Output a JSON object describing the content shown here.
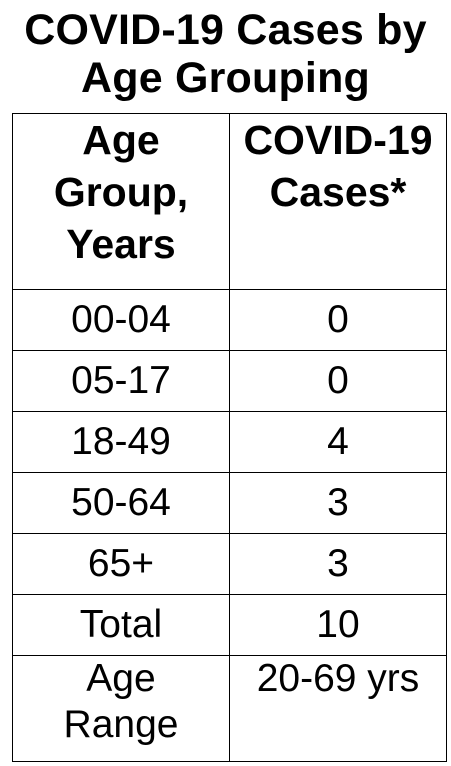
{
  "title": {
    "line1": "COVID-19 Cases by",
    "line2": "Age Grouping"
  },
  "table": {
    "headers": {
      "age_group": [
        "Age",
        "Group,",
        "Years"
      ],
      "cases": [
        "COVID-19",
        "Cases*"
      ]
    },
    "rows": [
      {
        "age": "00-04",
        "cases": "0"
      },
      {
        "age": "05-17",
        "cases": "0"
      },
      {
        "age": "18-49",
        "cases": "4"
      },
      {
        "age": "50-64",
        "cases": "3"
      },
      {
        "age": "65+",
        "cases": "3"
      },
      {
        "age": "Total",
        "cases": "10"
      }
    ],
    "age_range": {
      "label": [
        "Age",
        "Range"
      ],
      "value": "20-69 yrs"
    }
  }
}
